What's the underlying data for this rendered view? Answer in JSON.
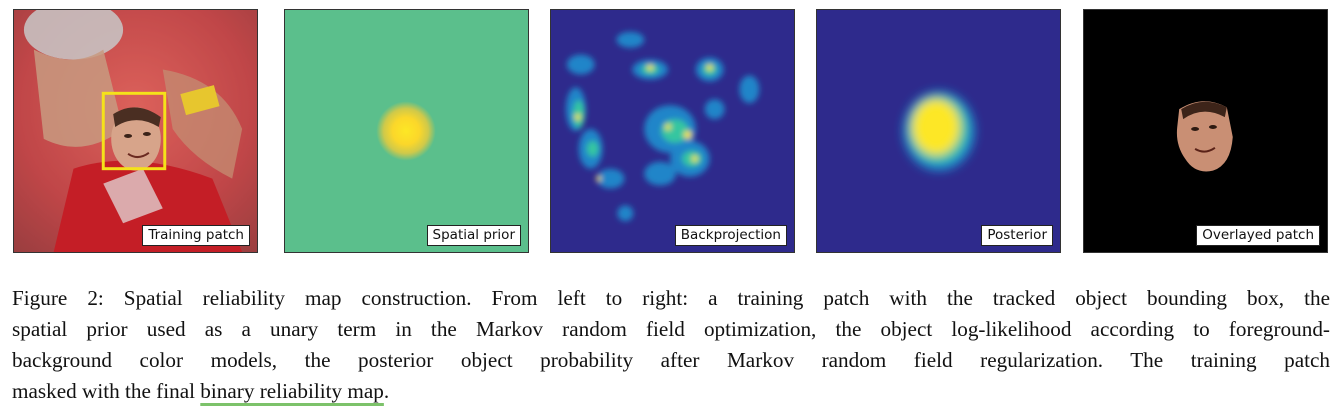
{
  "figure": {
    "panels": [
      {
        "id": "training",
        "label": "Training patch",
        "icon": "training-patch-image"
      },
      {
        "id": "prior",
        "label": "Spatial prior",
        "icon": "spatial-prior-heatmap"
      },
      {
        "id": "backprojection",
        "label": "Backprojection",
        "icon": "backprojection-heatmap"
      },
      {
        "id": "posterior",
        "label": "Posterior",
        "icon": "posterior-heatmap"
      },
      {
        "id": "overlay",
        "label": "Overlayed patch",
        "icon": "overlayed-patch-image"
      }
    ],
    "colors": {
      "bounding_box": "#f5e21a",
      "prior_background": "#5bbf8c",
      "heatmap_low": "#2e2a8c",
      "heatmap_high": "#fde725",
      "overlay_background": "#000000",
      "highlight_underline": "#7cc26a"
    }
  },
  "caption": {
    "lines": [
      "Figure 2: Spatial reliability map construction. From left to right: a training patch with the tracked object bounding box, the",
      "spatial prior used as a unary term in the Markov random field optimization, the object log-likelihood according to foreground-",
      "background color models, the posterior object probability after Markov random field regularization.  The training patch"
    ],
    "last_line_prefix": "masked with the final ",
    "last_line_highlight": "binary reliability map",
    "last_line_suffix": "."
  }
}
